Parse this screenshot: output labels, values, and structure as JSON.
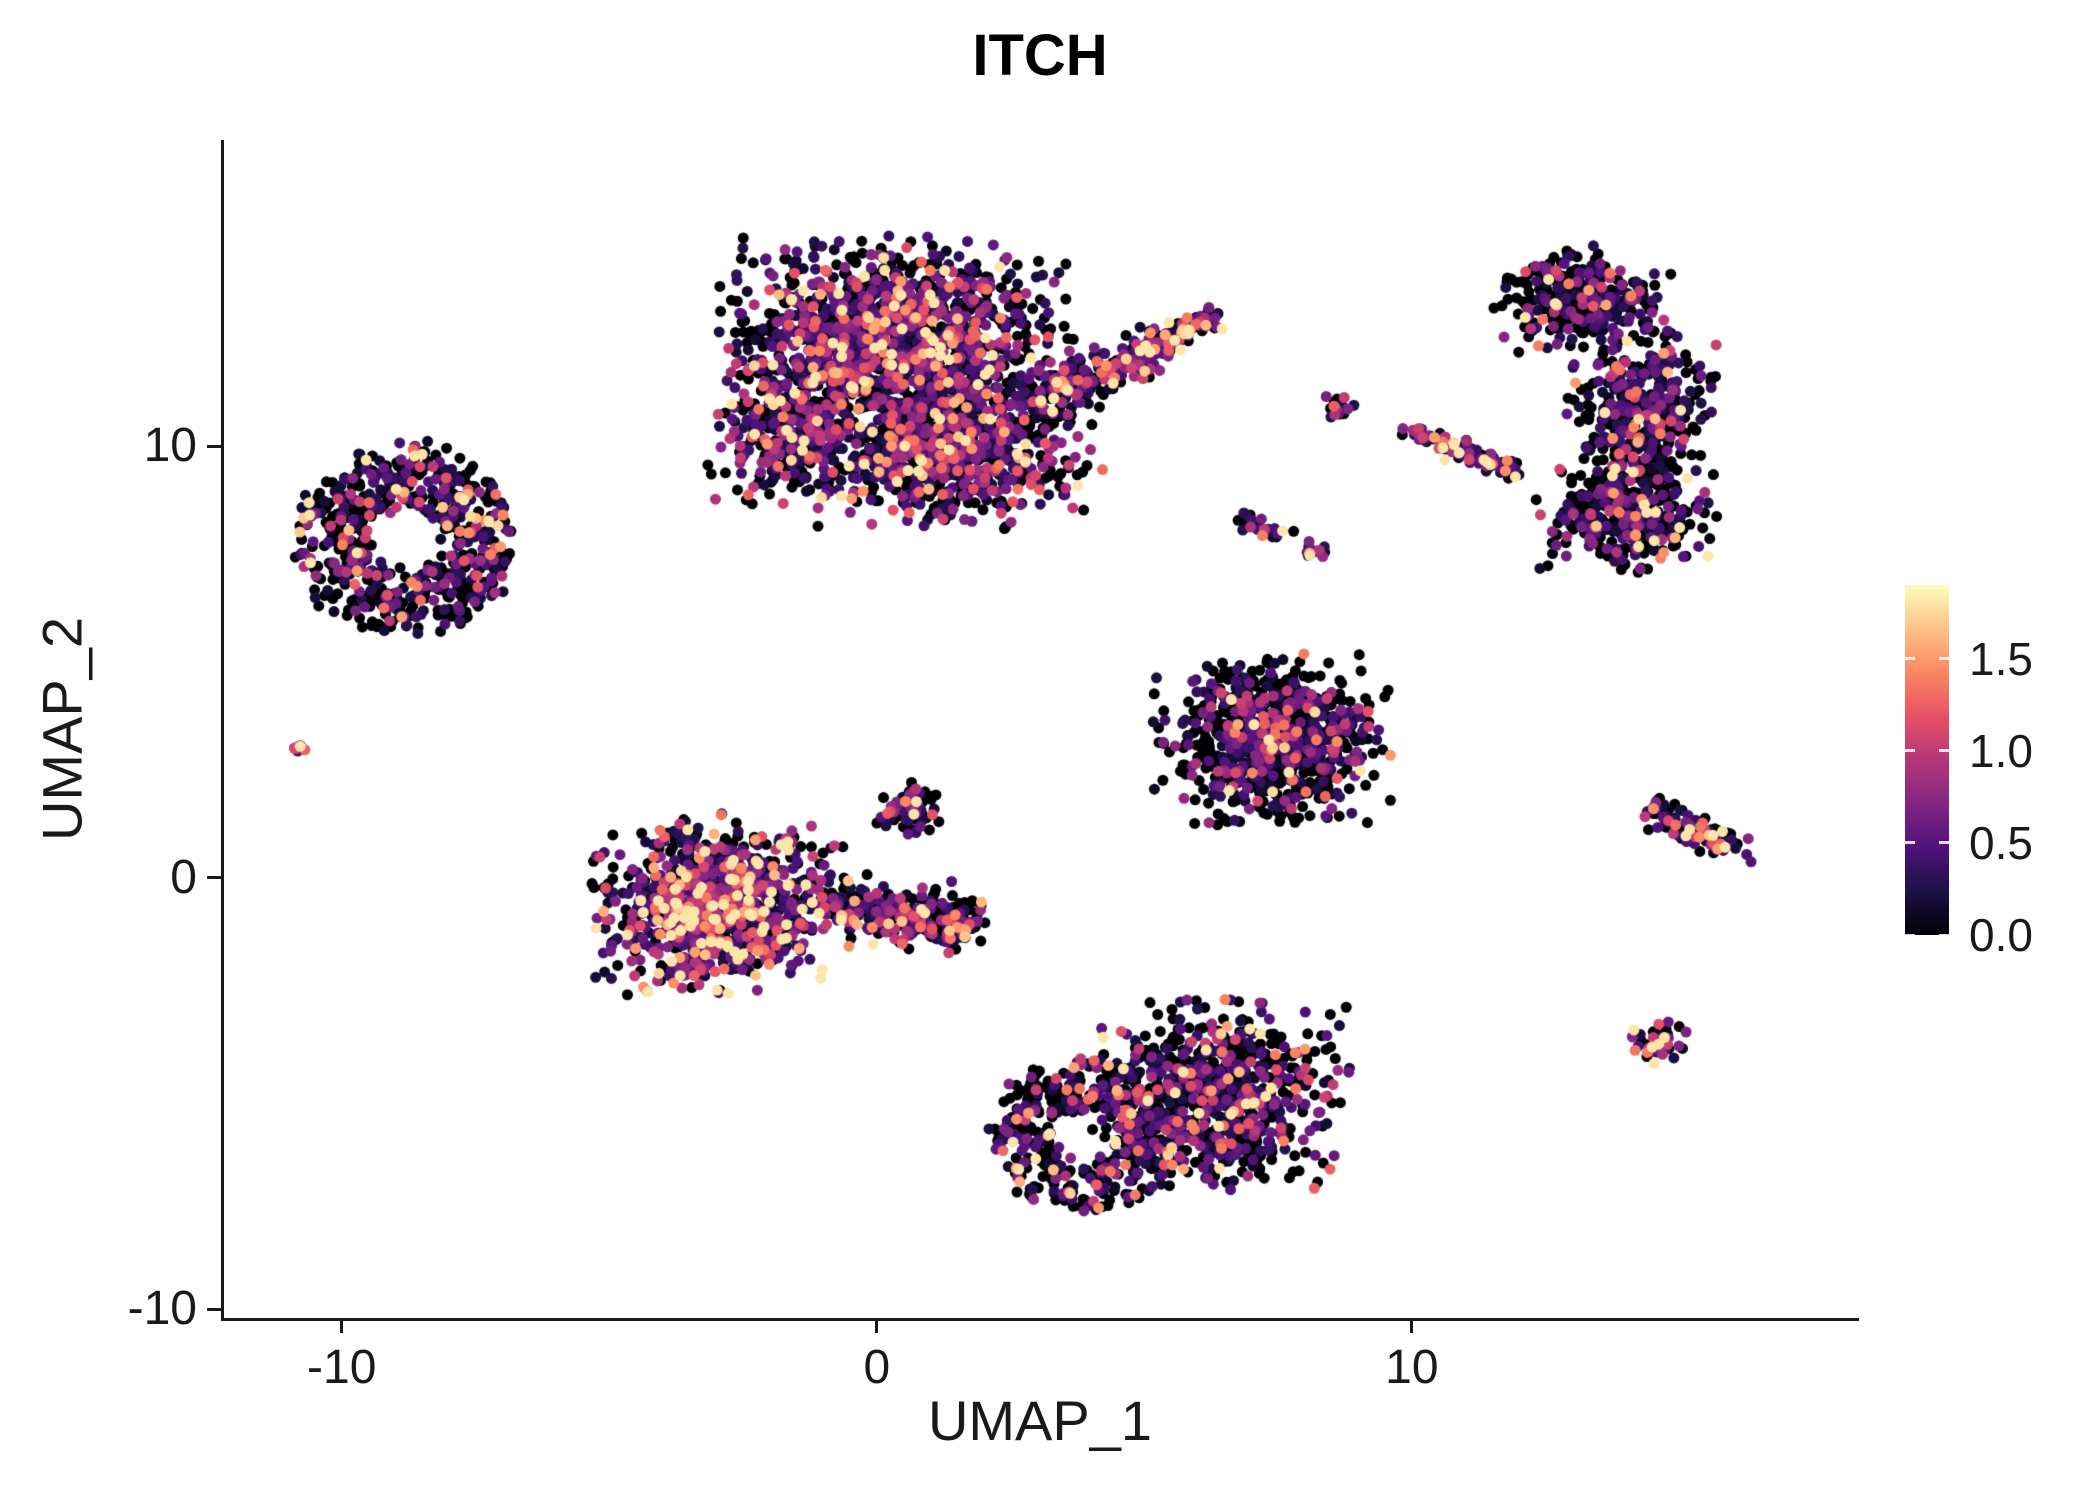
{
  "title": "ITCH",
  "axes": {
    "x_label": "UMAP_1",
    "y_label": "UMAP_2",
    "x_range": [
      -12.2,
      18.3
    ],
    "y_range": [
      -10.2,
      17.1
    ],
    "x_ticks": [
      {
        "v": -10,
        "label": "-10"
      },
      {
        "v": 0,
        "label": "0"
      },
      {
        "v": 10,
        "label": "10"
      }
    ],
    "y_ticks": [
      {
        "v": -10,
        "label": "-10"
      },
      {
        "v": 0,
        "label": "0"
      },
      {
        "v": 10,
        "label": "10"
      }
    ]
  },
  "legend": {
    "range": [
      0,
      1.9
    ],
    "ticks": [
      {
        "v": 0.0,
        "label": "0.0"
      },
      {
        "v": 0.5,
        "label": "0.5"
      },
      {
        "v": 1.0,
        "label": "1.0"
      },
      {
        "v": 1.5,
        "label": "1.5"
      }
    ],
    "colormap": "magma",
    "stops": [
      "#000004",
      "#1d1147",
      "#50127b",
      "#822681",
      "#b63679",
      "#e65164",
      "#fb8761",
      "#fec287",
      "#fcfdbf"
    ]
  },
  "chart_data": {
    "type": "scatter",
    "title": "ITCH",
    "xlabel": "UMAP_1",
    "ylabel": "UMAP_2",
    "xlim": [
      -12.2,
      18.3
    ],
    "ylim": [
      -10.2,
      17.1
    ],
    "color_scale": {
      "min": 0.0,
      "max": 1.9,
      "ticks": [
        0.0,
        0.5,
        1.0,
        1.5
      ],
      "colormap": "magma"
    },
    "n_points_approx": 8300,
    "point_radius_px": 5.5,
    "clusters": [
      {
        "name": "top-center-main",
        "shape": "blob",
        "cx": 0.3,
        "cy": 12.4,
        "rx": 2.7,
        "ry": 2.0,
        "n": 1500,
        "zero_frac": 0.38,
        "expr_scale": 0.55
      },
      {
        "name": "top-center-lower",
        "shape": "blob",
        "cx": 1.4,
        "cy": 9.9,
        "rx": 2.3,
        "ry": 1.5,
        "n": 800,
        "zero_frac": 0.38,
        "expr_scale": 0.55
      },
      {
        "name": "top-center-left-lobe",
        "shape": "blob",
        "cx": -1.7,
        "cy": 10.3,
        "rx": 1.2,
        "ry": 1.4,
        "n": 300,
        "zero_frac": 0.4,
        "expr_scale": 0.5
      },
      {
        "name": "top-right-arm",
        "shape": "streak",
        "x0": 3.0,
        "y0": 11.0,
        "x1": 5.2,
        "y1": 12.3,
        "w": 0.45,
        "n": 220,
        "zero_frac": 0.35,
        "expr_scale": 0.6
      },
      {
        "name": "top-right-arm-tip",
        "shape": "streak",
        "x0": 5.3,
        "y0": 12.4,
        "x1": 6.2,
        "y1": 13.0,
        "w": 0.3,
        "n": 90,
        "zero_frac": 0.3,
        "expr_scale": 0.7
      },
      {
        "name": "left-ring",
        "shape": "ring",
        "cx": -8.8,
        "cy": 7.8,
        "r0": 0.75,
        "r1": 2.05,
        "aspect": 1.1,
        "n": 620,
        "zero_frac": 0.5,
        "expr_scale": 0.5
      },
      {
        "name": "far-left-dot",
        "shape": "blob",
        "cx": -10.8,
        "cy": 3.0,
        "rx": 0.18,
        "ry": 0.22,
        "n": 9,
        "zero_frac": 0.2,
        "expr_scale": 0.6
      },
      {
        "name": "center-left-main",
        "shape": "blob",
        "cx": -3.0,
        "cy": -0.6,
        "rx": 1.9,
        "ry": 1.7,
        "n": 1000,
        "zero_frac": 0.28,
        "expr_scale": 0.7
      },
      {
        "name": "center-left-east-arm",
        "shape": "streak",
        "x0": -1.0,
        "y0": -0.6,
        "x1": 1.7,
        "y1": -1.1,
        "w": 0.55,
        "n": 300,
        "zero_frac": 0.35,
        "expr_scale": 0.6
      },
      {
        "name": "center-left-north-spur",
        "shape": "blob",
        "cx": 0.6,
        "cy": 1.6,
        "rx": 0.5,
        "ry": 0.6,
        "n": 60,
        "zero_frac": 0.4,
        "expr_scale": 0.5
      },
      {
        "name": "mid-right-triangle",
        "shape": "blob",
        "cx": 7.4,
        "cy": 3.2,
        "rx": 1.8,
        "ry": 1.6,
        "n": 850,
        "zero_frac": 0.55,
        "expr_scale": 0.45
      },
      {
        "name": "bottom-center-east",
        "shape": "blob",
        "cx": 6.4,
        "cy": -5.0,
        "rx": 2.0,
        "ry": 1.8,
        "n": 750,
        "zero_frac": 0.48,
        "expr_scale": 0.5
      },
      {
        "name": "bottom-center-west-ring",
        "shape": "ring",
        "cx": 3.9,
        "cy": -6.0,
        "r0": 0.65,
        "r1": 1.75,
        "aspect": 1.0,
        "n": 420,
        "zero_frac": 0.52,
        "expr_scale": 0.45
      },
      {
        "name": "right-band-top",
        "shape": "blob",
        "cx": 13.2,
        "cy": 13.4,
        "rx": 1.35,
        "ry": 1.0,
        "n": 330,
        "zero_frac": 0.55,
        "expr_scale": 0.45
      },
      {
        "name": "right-band-mid",
        "shape": "blob",
        "cx": 14.3,
        "cy": 10.8,
        "rx": 1.15,
        "ry": 1.7,
        "n": 430,
        "zero_frac": 0.55,
        "expr_scale": 0.45
      },
      {
        "name": "right-band-bottom",
        "shape": "blob",
        "cx": 14.0,
        "cy": 8.4,
        "rx": 1.45,
        "ry": 1.1,
        "n": 330,
        "zero_frac": 0.5,
        "expr_scale": 0.5
      },
      {
        "name": "small-mid-dot",
        "shape": "blob",
        "cx": 8.6,
        "cy": 10.8,
        "rx": 0.28,
        "ry": 0.33,
        "n": 20,
        "zero_frac": 0.35,
        "expr_scale": 0.6
      },
      {
        "name": "mid-diagonal-streak",
        "shape": "streak",
        "x0": 9.9,
        "y0": 10.4,
        "x1": 11.9,
        "y1": 9.4,
        "w": 0.22,
        "n": 95,
        "zero_frac": 0.3,
        "expr_scale": 0.7
      },
      {
        "name": "small-mid-streak",
        "shape": "streak",
        "x0": 6.8,
        "y0": 8.3,
        "x1": 7.6,
        "y1": 8.0,
        "w": 0.18,
        "n": 26,
        "zero_frac": 0.4,
        "expr_scale": 0.5
      },
      {
        "name": "small-mid-dot-2",
        "shape": "blob",
        "cx": 8.15,
        "cy": 7.6,
        "rx": 0.3,
        "ry": 0.2,
        "n": 15,
        "zero_frac": 0.4,
        "expr_scale": 0.5
      },
      {
        "name": "right-small-streak",
        "shape": "streak",
        "x0": 14.4,
        "y0": 1.7,
        "x1": 16.1,
        "y1": 0.6,
        "w": 0.3,
        "n": 110,
        "zero_frac": 0.3,
        "expr_scale": 0.65
      },
      {
        "name": "bottom-right-dot",
        "shape": "blob",
        "cx": 14.6,
        "cy": -3.8,
        "rx": 0.45,
        "ry": 0.4,
        "n": 48,
        "zero_frac": 0.25,
        "expr_scale": 0.7
      }
    ]
  }
}
